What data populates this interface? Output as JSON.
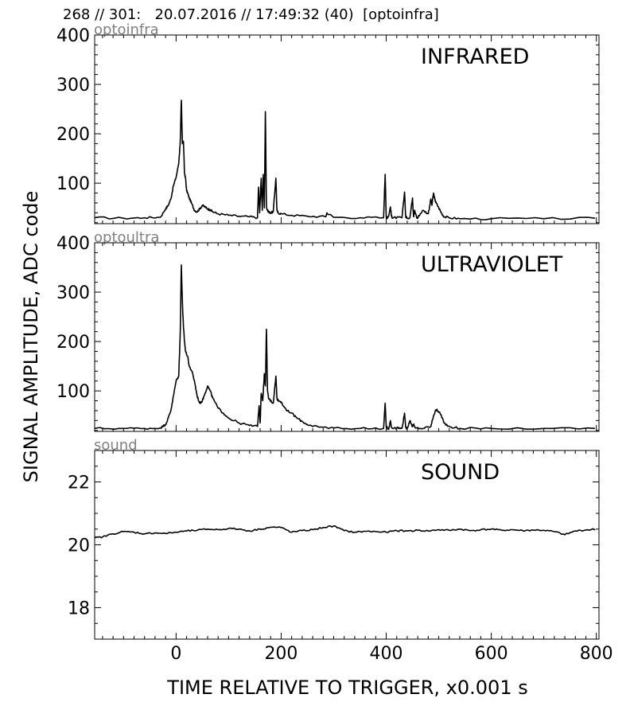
{
  "header": "268 // 301:   20.07.2016 // 17:49:32 (40)  [optoinfra]",
  "chart_data": {
    "type": "line",
    "xlabel": "TIME RELATIVE TO TRIGGER,   x0.001 s",
    "ylabel": "SIGNAL AMPLITUDE,  ADC code",
    "xlim": [
      -155,
      805
    ],
    "xticks": [
      0,
      200,
      400,
      600,
      800
    ],
    "panels": [
      {
        "id": "infrared",
        "title": "INFRARED",
        "sublabel": "optoinfra",
        "ylim": [
          18,
          400
        ],
        "yticks": [
          100,
          200,
          300,
          400
        ],
        "baseline": 28,
        "series": {
          "x": [
            -155,
            -100,
            -60,
            -30,
            -20,
            -15,
            -10,
            -5,
            0,
            5,
            8,
            10,
            12,
            14,
            16,
            18,
            20,
            22,
            25,
            30,
            35,
            40,
            45,
            50,
            55,
            60,
            65,
            70,
            80,
            100,
            120,
            140,
            155,
            157,
            159,
            162,
            164,
            166,
            168,
            170,
            172,
            174,
            176,
            180,
            185,
            190,
            192,
            194,
            200,
            220,
            250,
            285,
            287,
            300,
            350,
            395,
            398,
            400,
            402,
            405,
            408,
            410,
            412,
            420,
            430,
            435,
            437,
            439,
            445,
            450,
            452,
            454,
            458,
            460,
            462,
            470,
            480,
            485,
            487,
            490,
            493,
            495,
            500,
            505,
            510,
            520,
            540,
            600,
            700,
            800
          ],
          "y": [
            30,
            29,
            30,
            31,
            48,
            55,
            68,
            95,
            112,
            140,
            185,
            268,
            180,
            185,
            120,
            110,
            85,
            80,
            70,
            58,
            45,
            42,
            48,
            55,
            52,
            48,
            46,
            42,
            38,
            35,
            33,
            32,
            30,
            92,
            40,
            110,
            45,
            118,
            50,
            245,
            52,
            45,
            42,
            40,
            42,
            110,
            45,
            40,
            38,
            35,
            33,
            32,
            40,
            31,
            30,
            30,
            118,
            32,
            30,
            35,
            52,
            33,
            30,
            30,
            30,
            82,
            32,
            30,
            30,
            70,
            32,
            45,
            30,
            30,
            34,
            45,
            38,
            68,
            55,
            80,
            65,
            60,
            50,
            40,
            32,
            30,
            28,
            28,
            28,
            29
          ]
        }
      },
      {
        "id": "ultraviolet",
        "title": "ULTRAVIOLET",
        "sublabel": "optoultra",
        "ylim": [
          18,
          400
        ],
        "yticks": [
          100,
          200,
          300,
          400
        ],
        "baseline": 24,
        "series": {
          "x": [
            -155,
            -100,
            -60,
            -30,
            -20,
            -15,
            -10,
            -5,
            0,
            5,
            8,
            10,
            12,
            14,
            16,
            18,
            22,
            25,
            30,
            35,
            40,
            45,
            50,
            55,
            60,
            65,
            70,
            80,
            90,
            100,
            120,
            140,
            155,
            158,
            160,
            162,
            165,
            168,
            170,
            172,
            174,
            176,
            180,
            185,
            190,
            192,
            195,
            200,
            210,
            220,
            230,
            240,
            250,
            260,
            280,
            300,
            350,
            395,
            398,
            400,
            402,
            405,
            408,
            410,
            420,
            430,
            435,
            437,
            440,
            445,
            450,
            452,
            455,
            470,
            485,
            490,
            495,
            500,
            505,
            510,
            520,
            540,
            600,
            700,
            800
          ],
          "y": [
            24,
            24,
            24,
            25,
            32,
            45,
            60,
            90,
            120,
            130,
            220,
            355,
            280,
            230,
            200,
            180,
            170,
            150,
            140,
            120,
            90,
            75,
            80,
            95,
            110,
            100,
            85,
            65,
            55,
            45,
            35,
            30,
            28,
            70,
            35,
            95,
            80,
            135,
            110,
            225,
            100,
            85,
            80,
            75,
            130,
            85,
            80,
            78,
            60,
            55,
            45,
            38,
            32,
            28,
            26,
            25,
            24,
            24,
            75,
            28,
            25,
            24,
            40,
            26,
            25,
            24,
            55,
            26,
            24,
            40,
            28,
            32,
            25,
            24,
            28,
            50,
            62,
            58,
            50,
            35,
            28,
            24,
            24,
            24,
            24
          ]
        }
      },
      {
        "id": "sound",
        "title": "SOUND",
        "sublabel": "sound",
        "ylim": [
          17,
          23
        ],
        "yticks": [
          18,
          20,
          22
        ],
        "series": {
          "x": [
            -155,
            -140,
            -120,
            -100,
            -80,
            -60,
            -40,
            -20,
            0,
            20,
            40,
            60,
            80,
            100,
            120,
            140,
            160,
            180,
            200,
            220,
            240,
            260,
            280,
            300,
            320,
            340,
            360,
            380,
            400,
            420,
            440,
            460,
            480,
            500,
            520,
            540,
            560,
            580,
            600,
            620,
            640,
            660,
            680,
            700,
            720,
            740,
            760,
            780,
            800
          ],
          "y": [
            20.22,
            20.25,
            20.35,
            20.42,
            20.4,
            20.35,
            20.38,
            20.36,
            20.4,
            20.44,
            20.46,
            20.5,
            20.48,
            20.52,
            20.5,
            20.44,
            20.5,
            20.56,
            20.55,
            20.4,
            20.45,
            20.48,
            20.55,
            20.6,
            20.45,
            20.4,
            20.43,
            20.42,
            20.4,
            20.45,
            20.44,
            20.46,
            20.44,
            20.48,
            20.46,
            20.5,
            20.45,
            20.48,
            20.5,
            20.46,
            20.48,
            20.45,
            20.47,
            20.46,
            20.42,
            20.32,
            20.44,
            20.47,
            20.5
          ]
        }
      }
    ]
  }
}
